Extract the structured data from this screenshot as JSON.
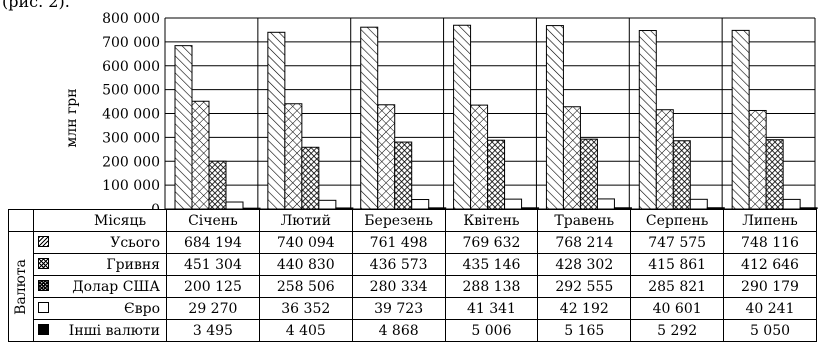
{
  "top_text": "(рис. 2).",
  "chart_data": {
    "type": "bar",
    "ylabel": "млн грн",
    "ylim": [
      0,
      800000
    ],
    "yticks": [
      "0",
      "100 000",
      "200 000",
      "300 000",
      "400 000",
      "500 000",
      "600 000",
      "700 000",
      "800 000"
    ],
    "ytick_values": [
      0,
      100000,
      200000,
      300000,
      400000,
      500000,
      600000,
      700000,
      800000
    ],
    "categories": [
      "Січень",
      "Лютий",
      "Березень",
      "Квітень",
      "Травень",
      "Серпень",
      "Липень"
    ],
    "series": [
      {
        "name": "Усього",
        "pattern": "diagonal-hatch",
        "values": [
          684194,
          740094,
          761498,
          769632,
          768214,
          747575,
          748116
        ]
      },
      {
        "name": "Гривня",
        "pattern": "crosshatch",
        "values": [
          451304,
          440830,
          436573,
          435146,
          428302,
          415861,
          412646
        ]
      },
      {
        "name": "Долар США",
        "pattern": "dense-crosshatch",
        "values": [
          200125,
          258506,
          280334,
          288138,
          292555,
          285821,
          290179
        ]
      },
      {
        "name": "Євро",
        "pattern": "white",
        "values": [
          29270,
          36352,
          39723,
          41341,
          42192,
          40601,
          40241
        ]
      },
      {
        "name": "Інші валюти",
        "pattern": "black",
        "values": [
          3495,
          4405,
          4868,
          5006,
          5165,
          5292,
          5050
        ]
      }
    ],
    "grid": true,
    "legend": "data-table"
  },
  "table": {
    "month_header": "Місяць",
    "group_label": "Валюта",
    "rows": [
      {
        "label": "Усього",
        "cells": [
          "684 194",
          "740 094",
          "761 498",
          "769 632",
          "768 214",
          "747 575",
          "748 116"
        ]
      },
      {
        "label": "Гривня",
        "cells": [
          "451 304",
          "440 830",
          "436 573",
          "435 146",
          "428 302",
          "415 861",
          "412 646"
        ]
      },
      {
        "label": "Долар США",
        "cells": [
          "200 125",
          "258 506",
          "280 334",
          "288 138",
          "292 555",
          "285 821",
          "290 179"
        ]
      },
      {
        "label": "Євро",
        "cells": [
          "29 270",
          "36 352",
          "39 723",
          "41 341",
          "42 192",
          "40 601",
          "40 241"
        ]
      },
      {
        "label": "Інші валюти",
        "cells": [
          "3 495",
          "4 405",
          "4 868",
          "5 006",
          "5 165",
          "5 292",
          "5 050"
        ]
      }
    ]
  }
}
